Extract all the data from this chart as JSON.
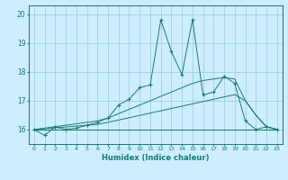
{
  "xlabel": "Humidex (Indice chaleur)",
  "bg_color": "#cceeff",
  "line_color": "#1a7a6e",
  "grid_color": "#99cccc",
  "x_data": [
    0,
    1,
    2,
    3,
    4,
    5,
    6,
    7,
    8,
    9,
    10,
    11,
    12,
    13,
    14,
    15,
    16,
    17,
    18,
    19,
    20,
    21,
    22,
    23
  ],
  "y_main": [
    16.0,
    15.8,
    16.1,
    16.0,
    16.05,
    16.15,
    16.25,
    16.4,
    16.85,
    17.05,
    17.45,
    17.55,
    19.8,
    18.7,
    17.9,
    19.8,
    17.2,
    17.3,
    17.85,
    17.6,
    16.3,
    16.0,
    16.1,
    16.0
  ],
  "y_flat": [
    16.0,
    16.0,
    16.0,
    16.0,
    16.0,
    16.0,
    16.0,
    16.0,
    16.0,
    16.0,
    16.0,
    16.0,
    16.0,
    16.0,
    16.0,
    16.0,
    16.0,
    16.0,
    16.0,
    16.0,
    16.0,
    16.0,
    16.0,
    16.0
  ],
  "y_trend_low": [
    16.0,
    16.03,
    16.06,
    16.09,
    16.12,
    16.15,
    16.18,
    16.25,
    16.33,
    16.41,
    16.49,
    16.57,
    16.65,
    16.73,
    16.81,
    16.89,
    16.97,
    17.05,
    17.13,
    17.21,
    17.0,
    16.5,
    16.1,
    16.0
  ],
  "y_trend_high": [
    16.0,
    16.05,
    16.1,
    16.15,
    16.2,
    16.25,
    16.3,
    16.4,
    16.55,
    16.7,
    16.85,
    17.0,
    17.15,
    17.3,
    17.45,
    17.6,
    17.7,
    17.75,
    17.8,
    17.75,
    17.0,
    16.5,
    16.1,
    16.0
  ],
  "ylim": [
    15.5,
    20.3
  ],
  "xlim": [
    -0.5,
    23.5
  ],
  "yticks": [
    16,
    17,
    18,
    19,
    20
  ],
  "xticks": [
    0,
    1,
    2,
    3,
    4,
    5,
    6,
    7,
    8,
    9,
    10,
    11,
    12,
    13,
    14,
    15,
    16,
    17,
    18,
    19,
    20,
    21,
    22,
    23
  ]
}
